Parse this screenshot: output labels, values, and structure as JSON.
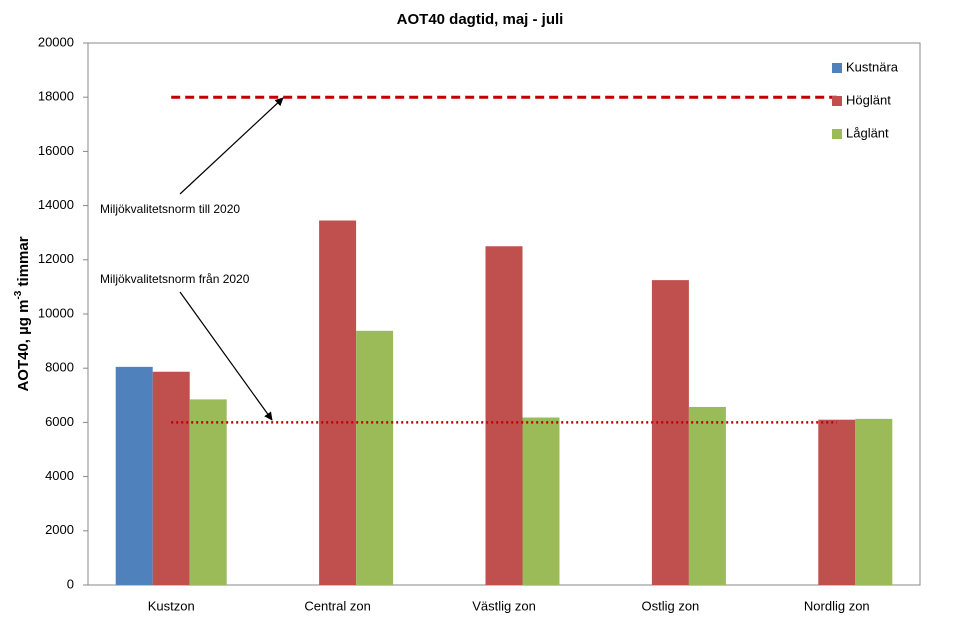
{
  "chart_data": {
    "type": "bar",
    "title": "AOT40 dagtid, maj - juli",
    "y_label": {
      "text": "AOT40, µg m",
      "sup": "-3",
      "suffix": " timmar"
    },
    "categories": [
      "Kustzon",
      "Central zon",
      "Västlig zon",
      "Ostlig zon",
      "Nordlig zon"
    ],
    "series": [
      {
        "name": "Kustnära",
        "color": "#4f81bd",
        "values": [
          8050,
          null,
          null,
          null,
          null
        ]
      },
      {
        "name": "Höglänt",
        "color": "#c0504d",
        "values": [
          7870,
          13450,
          12500,
          11250,
          6100
        ]
      },
      {
        "name": "Låglänt",
        "color": "#9bbb59",
        "values": [
          6850,
          9380,
          6180,
          6570,
          6130
        ]
      }
    ],
    "reference_lines": [
      {
        "value": 18000,
        "label": "Miljökvalitetsnorm till 2020",
        "style": "dashed",
        "color": "#c00000"
      },
      {
        "value": 6000,
        "label": "Miljökvalitetsnorm från 2020",
        "style": "dotted",
        "color": "#c00000"
      }
    ],
    "ylim": [
      0,
      20000
    ],
    "yticks": [
      0,
      2000,
      4000,
      6000,
      8000,
      10000,
      12000,
      14000,
      16000,
      18000,
      20000
    ],
    "grid": false,
    "legend": "top-right"
  }
}
